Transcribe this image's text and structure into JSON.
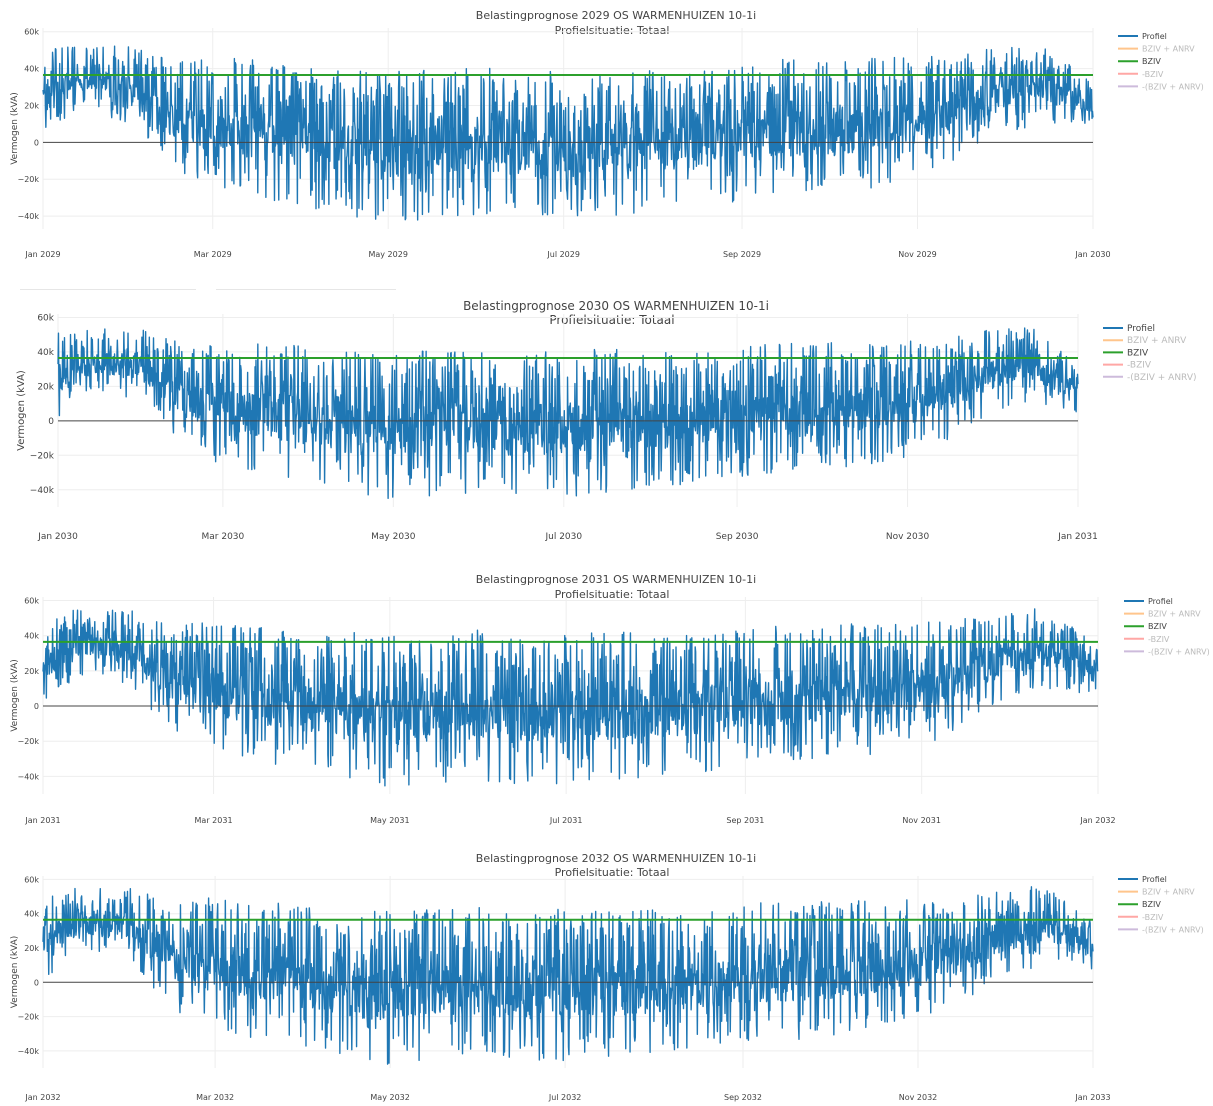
{
  "series_names": {
    "profiel": "Profiel",
    "bziv_anrv": "BZIV + ANRV",
    "bziv": "BZIV",
    "neg_bziv": "-BZIV",
    "neg_bziv_anrv": "-(BZIV + ANRV)"
  },
  "colors": {
    "profiel": "#1f77b4",
    "bziv_anrv": "#ffbb78",
    "bziv": "#2ca02c",
    "neg_bziv": "#ff9896",
    "neg_bziv_anrv": "#c5b0d5",
    "zero_line": "#444444",
    "grid": "#eeeeee"
  },
  "chart_data": [
    {
      "type": "line",
      "title": "Belastingprognose 2029 OS WARMENHUIZEN 10-1i",
      "subtitle": "Profielsituatie: Totaal",
      "ylabel": "Vermogen (kVA)",
      "ylim": [
        -47000,
        62000
      ],
      "yticks": [
        60000,
        40000,
        20000,
        0,
        -20000,
        -40000
      ],
      "ytick_labels": [
        "60k",
        "40k",
        "20k",
        "0",
        "−20k",
        "−40k"
      ],
      "xlim": [
        "2029-01-01",
        "2030-01-01"
      ],
      "xticks": [
        "2029-01-01",
        "2029-03-01",
        "2029-05-01",
        "2029-07-01",
        "2029-09-01",
        "2029-11-01",
        "2030-01-01"
      ],
      "xtick_labels": [
        "Jan 2029",
        "Mar 2029",
        "May 2029",
        "Jul 2029",
        "Sep 2029",
        "Nov 2029",
        "Jan 2030"
      ],
      "bziv_value": 36500,
      "profile_envelope": {
        "dates": [
          "2029-01-01",
          "2029-01-15",
          "2029-02-01",
          "2029-02-15",
          "2029-03-01",
          "2029-03-15",
          "2029-04-01",
          "2029-04-15",
          "2029-05-01",
          "2029-05-15",
          "2029-06-01",
          "2029-06-15",
          "2029-07-01",
          "2029-07-15",
          "2029-08-01",
          "2029-08-15",
          "2029-09-01",
          "2029-09-15",
          "2029-10-01",
          "2029-10-15",
          "2029-11-01",
          "2029-11-15",
          "2029-12-01",
          "2029-12-15",
          "2030-01-01"
        ],
        "max": [
          50000,
          53000,
          52000,
          44000,
          47000,
          45000,
          42000,
          40000,
          38000,
          40000,
          42000,
          38000,
          40000,
          41000,
          40000,
          38000,
          42000,
          45000,
          44000,
          46000,
          46000,
          48000,
          52000,
          54000,
          32000
        ],
        "min": [
          2000,
          18000,
          10000,
          -15000,
          -25000,
          -30000,
          -35000,
          -40000,
          -43000,
          -42000,
          -40000,
          -42000,
          -43000,
          -40000,
          -38000,
          -35000,
          -32000,
          -30000,
          -28000,
          -25000,
          -20000,
          -10000,
          5000,
          10000,
          5000
        ]
      }
    },
    {
      "type": "line",
      "title": "Belastingprognose 2030 OS WARMENHUIZEN 10-1i",
      "subtitle": "Profielsituatie: Totaal",
      "ylabel": "Vermogen (kVA)",
      "ylim": [
        -50000,
        62000
      ],
      "yticks": [
        60000,
        40000,
        20000,
        0,
        -20000,
        -40000
      ],
      "ytick_labels": [
        "60k",
        "40k",
        "20k",
        "0",
        "−20k",
        "−40k"
      ],
      "xlim": [
        "2030-01-01",
        "2031-01-01"
      ],
      "xticks": [
        "2030-01-01",
        "2030-03-01",
        "2030-05-01",
        "2030-07-01",
        "2030-09-01",
        "2030-11-01",
        "2031-01-01"
      ],
      "xtick_labels": [
        "Jan 2030",
        "Mar 2030",
        "May 2030",
        "Jul 2030",
        "Sep 2030",
        "Nov 2030",
        "Jan 2031"
      ],
      "bziv_value": 36500,
      "profile_envelope": {
        "dates": [
          "2030-01-01",
          "2030-01-15",
          "2030-02-01",
          "2030-02-15",
          "2030-03-01",
          "2030-03-15",
          "2030-04-01",
          "2030-04-15",
          "2030-05-01",
          "2030-05-15",
          "2030-06-01",
          "2030-06-15",
          "2030-07-01",
          "2030-07-15",
          "2030-08-01",
          "2030-08-15",
          "2030-09-01",
          "2030-09-15",
          "2030-10-01",
          "2030-10-15",
          "2030-11-01",
          "2030-11-15",
          "2030-12-01",
          "2030-12-15",
          "2031-01-01"
        ],
        "max": [
          52000,
          54000,
          53000,
          45000,
          48000,
          46000,
          43000,
          41000,
          40000,
          41000,
          43000,
          39000,
          41000,
          42000,
          41000,
          39000,
          43000,
          46000,
          45000,
          47000,
          47000,
          49000,
          53000,
          55000,
          33000
        ],
        "min": [
          2000,
          18000,
          10000,
          -15000,
          -26000,
          -31000,
          -36000,
          -42000,
          -46000,
          -44000,
          -42000,
          -44000,
          -45000,
          -42000,
          -40000,
          -37000,
          -34000,
          -32000,
          -30000,
          -27000,
          -22000,
          -12000,
          4000,
          10000,
          5000
        ]
      }
    },
    {
      "type": "line",
      "title": "Belastingprognose 2031 OS WARMENHUIZEN 10-1i",
      "subtitle": "Profielsituatie: Totaal",
      "ylabel": "Vermogen (kVA)",
      "ylim": [
        -50000,
        62000
      ],
      "yticks": [
        60000,
        40000,
        20000,
        0,
        -20000,
        -40000
      ],
      "ytick_labels": [
        "60k",
        "40k",
        "20k",
        "0",
        "−20k",
        "−40k"
      ],
      "xlim": [
        "2031-01-01",
        "2032-01-01"
      ],
      "xticks": [
        "2031-01-01",
        "2031-03-01",
        "2031-05-01",
        "2031-07-01",
        "2031-09-01",
        "2031-11-01",
        "2032-01-01"
      ],
      "xtick_labels": [
        "Jan 2031",
        "Mar 2031",
        "May 2031",
        "Jul 2031",
        "Sep 2031",
        "Nov 2031",
        "Jan 2032"
      ],
      "bziv_value": 36500,
      "profile_envelope": {
        "dates": [
          "2031-01-01",
          "2031-01-15",
          "2031-02-01",
          "2031-02-15",
          "2031-03-01",
          "2031-03-15",
          "2031-04-01",
          "2031-04-15",
          "2031-05-01",
          "2031-05-15",
          "2031-06-01",
          "2031-06-15",
          "2031-07-01",
          "2031-07-15",
          "2031-08-01",
          "2031-08-15",
          "2031-09-01",
          "2031-09-15",
          "2031-10-01",
          "2031-10-15",
          "2031-11-01",
          "2031-11-15",
          "2031-12-01",
          "2031-12-15",
          "2032-01-01"
        ],
        "max": [
          53000,
          55000,
          54000,
          46000,
          49000,
          47000,
          44000,
          42000,
          41000,
          42000,
          44000,
          40000,
          42000,
          43000,
          42000,
          40000,
          44000,
          47000,
          46000,
          48000,
          48000,
          50000,
          54000,
          56000,
          34000
        ],
        "min": [
          2000,
          18000,
          10000,
          -16000,
          -27000,
          -32000,
          -37000,
          -43000,
          -47000,
          -45000,
          -43000,
          -45000,
          -46000,
          -43000,
          -41000,
          -38000,
          -35000,
          -33000,
          -31000,
          -28000,
          -23000,
          -13000,
          4000,
          10000,
          5000
        ]
      }
    },
    {
      "type": "line",
      "title": "Belastingprognose 2032 OS WARMENHUIZEN 10-1i",
      "subtitle": "Profielsituatie: Totaal",
      "ylabel": "Vermogen (kVA)",
      "ylim": [
        -50000,
        62000
      ],
      "yticks": [
        60000,
        40000,
        20000,
        0,
        -20000,
        -40000
      ],
      "ytick_labels": [
        "60k",
        "40k",
        "20k",
        "0",
        "−20k",
        "−40k"
      ],
      "xlim": [
        "2032-01-01",
        "2033-01-01"
      ],
      "xticks": [
        "2032-01-01",
        "2032-03-01",
        "2032-05-01",
        "2032-07-01",
        "2032-09-01",
        "2032-11-01",
        "2033-01-01"
      ],
      "xtick_labels": [
        "Jan 2032",
        "Mar 2032",
        "May 2032",
        "Jul 2032",
        "Sep 2032",
        "Nov 2032",
        "Jan 2033"
      ],
      "bziv_value": 36500,
      "profile_envelope": {
        "dates": [
          "2032-01-01",
          "2032-01-15",
          "2032-02-01",
          "2032-02-15",
          "2032-03-01",
          "2032-03-15",
          "2032-04-01",
          "2032-04-15",
          "2032-05-01",
          "2032-05-15",
          "2032-06-01",
          "2032-06-15",
          "2032-07-01",
          "2032-07-15",
          "2032-08-01",
          "2032-08-15",
          "2032-09-01",
          "2032-09-15",
          "2032-10-01",
          "2032-10-15",
          "2032-11-01",
          "2032-11-15",
          "2032-12-01",
          "2032-12-15",
          "2033-01-01"
        ],
        "max": [
          54000,
          56000,
          55000,
          47000,
          50000,
          48000,
          45000,
          43000,
          42000,
          43000,
          45000,
          41000,
          43000,
          44000,
          43000,
          41000,
          45000,
          48000,
          47000,
          49000,
          49000,
          51000,
          55000,
          57000,
          35000
        ],
        "min": [
          2000,
          18000,
          10000,
          -16000,
          -28000,
          -33000,
          -38000,
          -44000,
          -48000,
          -46000,
          -44000,
          -46000,
          -47000,
          -44000,
          -42000,
          -39000,
          -36000,
          -34000,
          -32000,
          -29000,
          -24000,
          -14000,
          4000,
          10000,
          5000
        ]
      }
    }
  ]
}
